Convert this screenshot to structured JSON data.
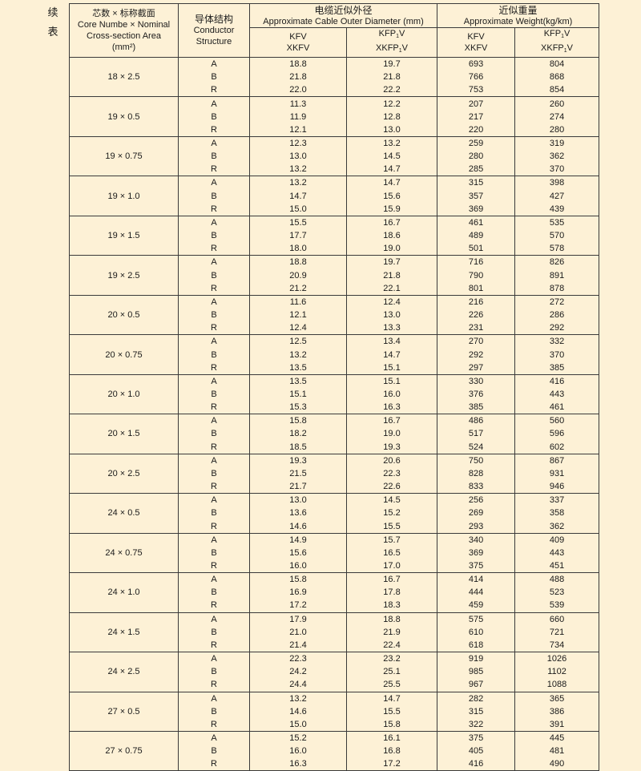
{
  "side_label": [
    "续",
    "表"
  ],
  "header": {
    "core": {
      "cn": "芯数 × 标称截面",
      "en1": "Core Numbe × Nominal",
      "en2": "Cross-section Area",
      "unit": "(mm²)"
    },
    "conductor": {
      "cn": "导体结构",
      "en1": "Conductor",
      "en2": "Structure"
    },
    "diameter": {
      "cn": "电缆近似外径",
      "en": "Approximate Cable Outer Diameter (mm)"
    },
    "weight": {
      "cn": "近似重量",
      "en": "Approximate Weight(kg/km)"
    },
    "sub": {
      "kfv": "KFV",
      "xkfv": "XKFV",
      "kfp": "KFP",
      "xkfp": "XKFP",
      "sub1": "1",
      "v": "V"
    }
  },
  "rows": [
    {
      "core": "18 × 2.5",
      "data": [
        [
          "A",
          "18.8",
          "19.7",
          "693",
          "804"
        ],
        [
          "B",
          "21.8",
          "21.8",
          "766",
          "868"
        ],
        [
          "R",
          "22.0",
          "22.2",
          "753",
          "854"
        ]
      ]
    },
    {
      "core": "19 × 0.5",
      "data": [
        [
          "A",
          "11.3",
          "12.2",
          "207",
          "260"
        ],
        [
          "B",
          "11.9",
          "12.8",
          "217",
          "274"
        ],
        [
          "R",
          "12.1",
          "13.0",
          "220",
          "280"
        ]
      ]
    },
    {
      "core": "19 × 0.75",
      "data": [
        [
          "A",
          "12.3",
          "13.2",
          "259",
          "319"
        ],
        [
          "B",
          "13.0",
          "14.5",
          "280",
          "362"
        ],
        [
          "R",
          "13.2",
          "14.7",
          "285",
          "370"
        ]
      ]
    },
    {
      "core": "19 × 1.0",
      "data": [
        [
          "A",
          "13.2",
          "14.7",
          "315",
          "398"
        ],
        [
          "B",
          "14.7",
          "15.6",
          "357",
          "427"
        ],
        [
          "R",
          "15.0",
          "15.9",
          "369",
          "439"
        ]
      ]
    },
    {
      "core": "19 × 1.5",
      "data": [
        [
          "A",
          "15.5",
          "16.7",
          "461",
          "535"
        ],
        [
          "B",
          "17.7",
          "18.6",
          "489",
          "570"
        ],
        [
          "R",
          "18.0",
          "19.0",
          "501",
          "578"
        ]
      ]
    },
    {
      "core": "19 × 2.5",
      "data": [
        [
          "A",
          "18.8",
          "19.7",
          "716",
          "826"
        ],
        [
          "B",
          "20.9",
          "21.8",
          "790",
          "891"
        ],
        [
          "R",
          "21.2",
          "22.1",
          "801",
          "878"
        ]
      ]
    },
    {
      "core": "20 × 0.5",
      "data": [
        [
          "A",
          "11.6",
          "12.4",
          "216",
          "272"
        ],
        [
          "B",
          "12.1",
          "13.0",
          "226",
          "286"
        ],
        [
          "R",
          "12.4",
          "13.3",
          "231",
          "292"
        ]
      ]
    },
    {
      "core": "20 × 0.75",
      "data": [
        [
          "A",
          "12.5",
          "13.4",
          "270",
          "332"
        ],
        [
          "B",
          "13.2",
          "14.7",
          "292",
          "370"
        ],
        [
          "R",
          "13.5",
          "15.1",
          "297",
          "385"
        ]
      ]
    },
    {
      "core": "20 × 1.0",
      "data": [
        [
          "A",
          "13.5",
          "15.1",
          "330",
          "416"
        ],
        [
          "B",
          "15.1",
          "16.0",
          "376",
          "443"
        ],
        [
          "R",
          "15.3",
          "16.3",
          "385",
          "461"
        ]
      ]
    },
    {
      "core": "20 × 1.5",
      "data": [
        [
          "A",
          "15.8",
          "16.7",
          "486",
          "560"
        ],
        [
          "B",
          "18.2",
          "19.0",
          "517",
          "596"
        ],
        [
          "R",
          "18.5",
          "19.3",
          "524",
          "602"
        ]
      ]
    },
    {
      "core": "20 × 2.5",
      "data": [
        [
          "A",
          "19.3",
          "20.6",
          "750",
          "867"
        ],
        [
          "B",
          "21.5",
          "22.3",
          "828",
          "931"
        ],
        [
          "R",
          "21.7",
          "22.6",
          "833",
          "946"
        ]
      ]
    },
    {
      "core": "24 × 0.5",
      "data": [
        [
          "A",
          "13.0",
          "14.5",
          "256",
          "337"
        ],
        [
          "B",
          "13.6",
          "15.2",
          "269",
          "358"
        ],
        [
          "R",
          "14.6",
          "15.5",
          "293",
          "362"
        ]
      ]
    },
    {
      "core": "24 × 0.75",
      "data": [
        [
          "A",
          "14.9",
          "15.7",
          "340",
          "409"
        ],
        [
          "B",
          "15.6",
          "16.5",
          "369",
          "443"
        ],
        [
          "R",
          "16.0",
          "17.0",
          "375",
          "451"
        ]
      ]
    },
    {
      "core": "24 × 1.0",
      "data": [
        [
          "A",
          "15.8",
          "16.7",
          "414",
          "488"
        ],
        [
          "B",
          "16.9",
          "17.8",
          "444",
          "523"
        ],
        [
          "R",
          "17.2",
          "18.3",
          "459",
          "539"
        ]
      ]
    },
    {
      "core": "24 × 1.5",
      "data": [
        [
          "A",
          "17.9",
          "18.8",
          "575",
          "660"
        ],
        [
          "B",
          "21.0",
          "21.9",
          "610",
          "721"
        ],
        [
          "R",
          "21.4",
          "22.4",
          "618",
          "734"
        ]
      ]
    },
    {
      "core": "24 × 2.5",
      "data": [
        [
          "A",
          "22.3",
          "23.2",
          "919",
          "1026"
        ],
        [
          "B",
          "24.2",
          "25.1",
          "985",
          "1102"
        ],
        [
          "R",
          "24.4",
          "25.5",
          "967",
          "1088"
        ]
      ]
    },
    {
      "core": "27 × 0.5",
      "data": [
        [
          "A",
          "13.2",
          "14.7",
          "282",
          "365"
        ],
        [
          "B",
          "14.6",
          "15.5",
          "315",
          "386"
        ],
        [
          "R",
          "15.0",
          "15.8",
          "322",
          "391"
        ]
      ]
    },
    {
      "core": "27 × 0.75",
      "data": [
        [
          "A",
          "15.2",
          "16.1",
          "375",
          "445"
        ],
        [
          "B",
          "16.0",
          "16.8",
          "405",
          "481"
        ],
        [
          "R",
          "16.3",
          "17.2",
          "416",
          "490"
        ]
      ]
    }
  ]
}
